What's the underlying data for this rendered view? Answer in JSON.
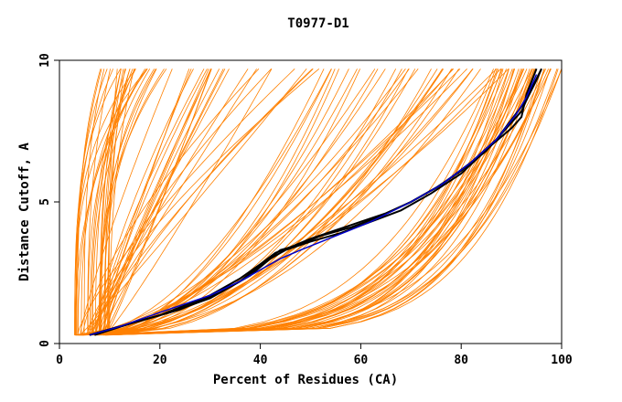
{
  "chart_data": {
    "type": "line",
    "title": "T0977-D1",
    "xlabel": "Percent of Residues (CA)",
    "ylabel": "Distance Cutoff, A",
    "xlim": [
      0,
      100
    ],
    "ylim": [
      0,
      10
    ],
    "x_ticks": [
      0,
      20,
      40,
      60,
      80,
      100
    ],
    "y_ticks": [
      0,
      5,
      10
    ],
    "grid": false,
    "legend": "none",
    "background_series_color": "#ff8000",
    "highlight_colors": {
      "black": "#000000",
      "blue": "#0000cc"
    },
    "background_groups": [
      {
        "start_range": [
          3,
          10
        ],
        "end_range": [
          8,
          22
        ],
        "count": 30,
        "shape": "steep"
      },
      {
        "start_range": [
          3,
          10
        ],
        "end_range": [
          22,
          52
        ],
        "count": 25,
        "shape": "linear"
      },
      {
        "start_range": [
          3,
          10
        ],
        "end_range": [
          52,
          92
        ],
        "count": 35,
        "shape": "mid"
      },
      {
        "start_range": [
          3,
          10
        ],
        "end_range": [
          86,
          100
        ],
        "count": 40,
        "shape": "flat"
      }
    ],
    "series": [
      {
        "color": "black",
        "points": [
          [
            6,
            0.3
          ],
          [
            10,
            0.5
          ],
          [
            20,
            1.0
          ],
          [
            30,
            1.7
          ],
          [
            36,
            2.3
          ],
          [
            40,
            2.8
          ],
          [
            43,
            3.2
          ],
          [
            46,
            3.4
          ],
          [
            50,
            3.7
          ],
          [
            55,
            4.0
          ],
          [
            60,
            4.3
          ],
          [
            65,
            4.6
          ],
          [
            70,
            5.0
          ],
          [
            75,
            5.5
          ],
          [
            80,
            6.1
          ],
          [
            85,
            6.8
          ],
          [
            90,
            7.8
          ],
          [
            92,
            8.2
          ],
          [
            94,
            9.0
          ],
          [
            96,
            9.7
          ]
        ]
      },
      {
        "color": "black",
        "points": [
          [
            6,
            0.3
          ],
          [
            12,
            0.6
          ],
          [
            22,
            1.1
          ],
          [
            30,
            1.6
          ],
          [
            36,
            2.2
          ],
          [
            41,
            2.9
          ],
          [
            44,
            3.3
          ],
          [
            48,
            3.5
          ],
          [
            52,
            3.8
          ],
          [
            58,
            4.1
          ],
          [
            64,
            4.5
          ],
          [
            70,
            5.0
          ],
          [
            76,
            5.6
          ],
          [
            82,
            6.4
          ],
          [
            87,
            7.2
          ],
          [
            90,
            7.9
          ],
          [
            93,
            8.6
          ],
          [
            95,
            9.3
          ],
          [
            96,
            9.7
          ]
        ]
      },
      {
        "color": "black",
        "points": [
          [
            7,
            0.3
          ],
          [
            14,
            0.7
          ],
          [
            24,
            1.2
          ],
          [
            32,
            1.8
          ],
          [
            38,
            2.4
          ],
          [
            42,
            3.0
          ],
          [
            45,
            3.3
          ],
          [
            50,
            3.6
          ],
          [
            56,
            3.9
          ],
          [
            62,
            4.3
          ],
          [
            68,
            4.7
          ],
          [
            74,
            5.3
          ],
          [
            80,
            6.0
          ],
          [
            86,
            7.0
          ],
          [
            90,
            7.6
          ],
          [
            92,
            8.0
          ],
          [
            93,
            8.8
          ],
          [
            95,
            9.7
          ]
        ]
      },
      {
        "color": "blue",
        "points": [
          [
            6,
            0.3
          ],
          [
            12,
            0.6
          ],
          [
            20,
            1.1
          ],
          [
            30,
            1.7
          ],
          [
            36,
            2.2
          ],
          [
            40,
            2.6
          ],
          [
            44,
            3.0
          ],
          [
            48,
            3.3
          ],
          [
            55,
            3.8
          ],
          [
            62,
            4.3
          ],
          [
            70,
            5.0
          ],
          [
            76,
            5.6
          ],
          [
            82,
            6.4
          ],
          [
            87,
            7.2
          ],
          [
            91,
            8.1
          ],
          [
            93,
            8.7
          ],
          [
            95,
            9.5
          ]
        ]
      }
    ]
  }
}
